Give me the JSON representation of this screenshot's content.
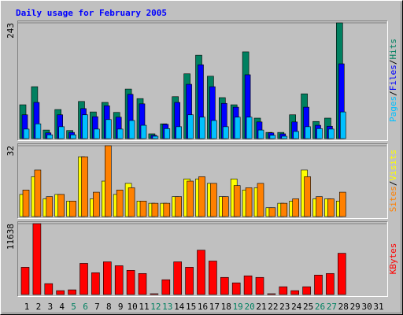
{
  "header": {
    "title": "Daily usage for February 2005",
    "legend_separator": "/"
  },
  "chart_data": [
    {
      "type": "bar",
      "ylim": [
        0,
        243
      ],
      "yticks": [
        243
      ],
      "series": [
        {
          "name": "Hits",
          "color": "#008060",
          "values": [
            71,
            109,
            18,
            61,
            17,
            78,
            56,
            76,
            55,
            104,
            84,
            10,
            31,
            88,
            136,
            175,
            131,
            86,
            71,
            182,
            43,
            13,
            13,
            50,
            94,
            36,
            43,
            243,
            null,
            null,
            null
          ]
        },
        {
          "name": "Files",
          "color": "#0000ff",
          "values": [
            50,
            76,
            12,
            50,
            13,
            63,
            46,
            69,
            45,
            93,
            73,
            7,
            30,
            76,
            114,
            155,
            109,
            74,
            66,
            134,
            35,
            12,
            10,
            35,
            66,
            28,
            26,
            157,
            null,
            null,
            null
          ]
        },
        {
          "name": "Pages",
          "color": "#00c0ff",
          "values": [
            20,
            31,
            8,
            25,
            8,
            50,
            20,
            40,
            20,
            38,
            28,
            5,
            21,
            25,
            50,
            45,
            38,
            25,
            45,
            45,
            18,
            7,
            5,
            15,
            25,
            21,
            20,
            56,
            null,
            null,
            null
          ]
        }
      ]
    },
    {
      "type": "bar",
      "ylim": [
        0,
        32
      ],
      "yticks": [
        32
      ],
      "series": [
        {
          "name": "Visits",
          "color": "#ffff00",
          "values": [
            10,
            18,
            8,
            10,
            7,
            27,
            8,
            16,
            10,
            15,
            7,
            6,
            6,
            9,
            17,
            17,
            15,
            9,
            17,
            12,
            13,
            4,
            6,
            7,
            21,
            8,
            8,
            7,
            null,
            null,
            null
          ]
        },
        {
          "name": "Sites",
          "color": "#ff8000",
          "values": [
            12,
            21,
            9,
            10,
            7,
            27,
            11,
            32,
            12,
            13,
            7,
            6,
            6,
            9,
            16,
            18,
            15,
            9,
            14,
            13,
            15,
            4,
            6,
            8,
            18,
            9,
            8,
            11,
            null,
            null,
            null
          ]
        }
      ]
    },
    {
      "type": "bar",
      "ylim": [
        0,
        11638
      ],
      "yticks": [
        11638
      ],
      "categories": [
        "1",
        "2",
        "3",
        "4",
        "5",
        "6",
        "7",
        "8",
        "9",
        "10",
        "11",
        "12",
        "13",
        "14",
        "15",
        "16",
        "17",
        "18",
        "19",
        "20",
        "21",
        "22",
        "23",
        "24",
        "25",
        "26",
        "27",
        "28",
        "29",
        "30",
        "31"
      ],
      "category_colors": [
        "#000000",
        "#000000",
        "#000000",
        "#000000",
        "#008060",
        "#008060",
        "#000000",
        "#000000",
        "#000000",
        "#000000",
        "#000000",
        "#008060",
        "#008060",
        "#000000",
        "#000000",
        "#000000",
        "#000000",
        "#000000",
        "#008060",
        "#008060",
        "#000000",
        "#000000",
        "#000000",
        "#000000",
        "#000000",
        "#008060",
        "#008060",
        "#000000",
        "#000000",
        "#000000",
        "#000000"
      ],
      "series": [
        {
          "name": "KBytes",
          "color": "#ff0000",
          "values": [
            4476,
            11638,
            1790,
            640,
            770,
            5115,
            3580,
            5371,
            4732,
            3964,
            3453,
            130,
            2430,
            5371,
            4476,
            7290,
            5500,
            2814,
            1918,
            3070,
            2814,
            130,
            1280,
            640,
            1280,
            3198,
            3453,
            6778,
            null,
            null,
            null
          ]
        }
      ]
    }
  ]
}
